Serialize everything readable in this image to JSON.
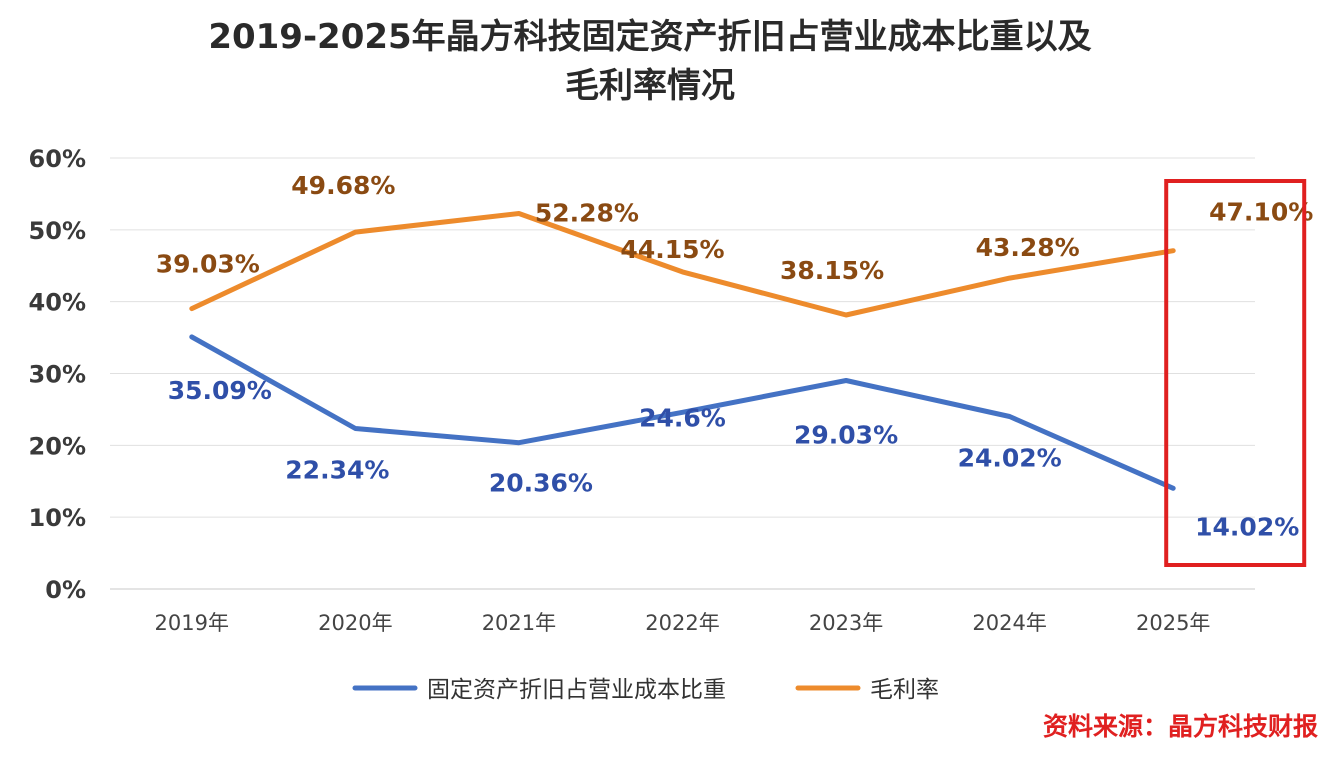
{
  "chart_data": {
    "type": "line",
    "title_line1": "2019-2025年晶方科技固定资产折旧占营业成本比重以及",
    "title_line2": "毛利率情况",
    "categories": [
      "2019年",
      "2020年",
      "2021年",
      "2022年",
      "2023年",
      "2024年",
      "2025年"
    ],
    "ylim": [
      0,
      60
    ],
    "yticks": [
      "0%",
      "10%",
      "20%",
      "30%",
      "40%",
      "50%",
      "60%"
    ],
    "grid": true,
    "legend_position": "bottom",
    "series": [
      {
        "name": "固定资产折旧占营业成本比重",
        "color": "#4472C4",
        "label_color": "#2F4FA8",
        "values": [
          35.09,
          22.34,
          20.36,
          24.6,
          29.03,
          24.02,
          14.02
        ],
        "labels": [
          "35.09%",
          "22.34%",
          "20.36%",
          "24.6%",
          "29.03%",
          "24.02%",
          "14.02%"
        ]
      },
      {
        "name": "毛利率",
        "color": "#ED8B2C",
        "label_color": "#8A4A12",
        "values": [
          39.03,
          49.68,
          52.28,
          44.15,
          38.15,
          43.28,
          47.1
        ],
        "labels": [
          "39.03%",
          "49.68%",
          "52.28%",
          "44.15%",
          "38.15%",
          "43.28%",
          "47.10%"
        ]
      }
    ],
    "highlight_category_index": 6,
    "highlight_color": "#E02020"
  },
  "source": {
    "text": "资料来源：晶方科技财报",
    "color": "#E02020"
  }
}
